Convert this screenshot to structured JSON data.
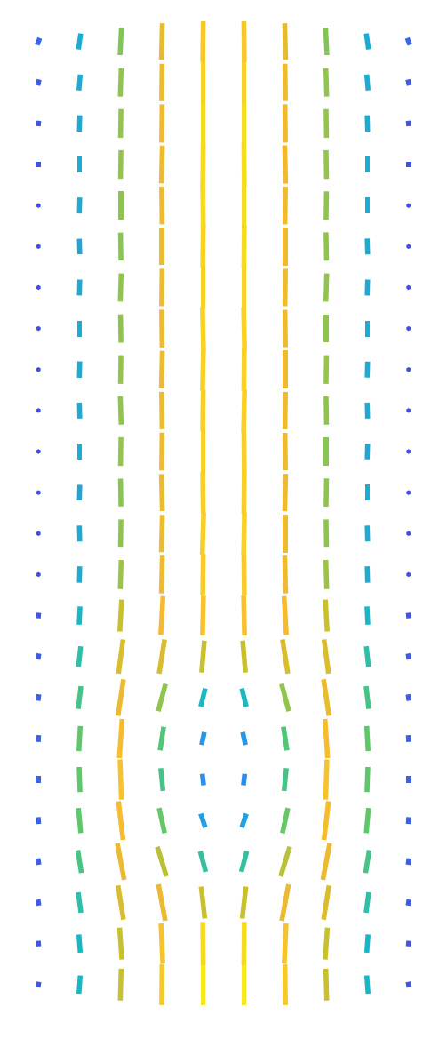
{
  "chart_data": {
    "type": "quiver",
    "tick_labels": false,
    "xlim": [
      0,
      10
    ],
    "ylim": [
      0,
      24
    ],
    "x": [
      0.5,
      1.5,
      2.5,
      3.5,
      4.5,
      5.5,
      6.5,
      7.5,
      8.5,
      9.5
    ],
    "y": [
      0.5,
      1.5,
      2.5,
      3.5,
      4.5,
      5.5,
      6.5,
      7.5,
      8.5,
      9.5,
      10.5,
      11.5,
      12.5,
      13.5,
      14.5,
      15.5,
      16.5,
      17.5,
      18.5,
      19.5,
      20.5,
      21.5,
      22.5,
      23.5
    ],
    "u": [
      [
        0.02,
        0.03,
        0.02,
        0.01,
        0,
        0,
        -0.01,
        -0.02,
        -0.03,
        -0.02
      ],
      [
        -0.01,
        -0.03,
        -0.05,
        -0.04,
        -0.01,
        0.01,
        0.04,
        0.05,
        0.03,
        0.01
      ],
      [
        -0.02,
        -0.06,
        -0.12,
        -0.15,
        -0.08,
        0.08,
        0.15,
        0.12,
        0.06,
        0.02
      ],
      [
        -0.02,
        -0.08,
        -0.15,
        -0.2,
        -0.12,
        0.12,
        0.2,
        0.15,
        0.08,
        0.02
      ],
      [
        -0.01,
        -0.05,
        -0.1,
        -0.12,
        -0.1,
        0.1,
        0.12,
        0.1,
        0.05,
        0.01
      ],
      [
        0,
        -0.02,
        -0.03,
        -0.05,
        -0.03,
        0.03,
        0.05,
        0.03,
        0.02,
        0
      ],
      [
        0.01,
        0.03,
        0.06,
        0.08,
        0.06,
        -0.06,
        -0.08,
        -0.06,
        -0.03,
        -0.01
      ],
      [
        0.02,
        0.06,
        0.12,
        0.16,
        0.1,
        -0.1,
        -0.16,
        -0.12,
        -0.06,
        -0.02
      ],
      [
        0.02,
        0.05,
        0.1,
        0.12,
        0.06,
        -0.06,
        -0.12,
        -0.1,
        -0.05,
        -0.02
      ],
      [
        0.01,
        0.02,
        0.04,
        0.05,
        0.02,
        -0.02,
        -0.05,
        -0.04,
        -0.02,
        -0.01
      ],
      [
        0,
        0.01,
        0.02,
        0.02,
        0.01,
        -0.01,
        -0.02,
        -0.02,
        -0.01,
        0
      ],
      [
        0,
        -0.01,
        0.01,
        0.02,
        0.03,
        0.02,
        0,
        -0.01,
        -0.01,
        0
      ],
      [
        0,
        0.01,
        -0.01,
        -0.02,
        -0.01,
        0.01,
        0.02,
        0.01,
        0,
        0
      ],
      [
        0,
        0,
        0.01,
        0.01,
        0,
        -0.01,
        -0.01,
        0,
        0.01,
        0
      ],
      [
        0,
        -0.01,
        -0.02,
        -0.01,
        0.01,
        0.02,
        0.01,
        -0.01,
        -0.01,
        0
      ],
      [
        0,
        0.01,
        0.01,
        0.02,
        0.02,
        0.01,
        0,
        0.01,
        0.01,
        0
      ],
      [
        0,
        0,
        -0.01,
        -0.01,
        -0.02,
        -0.02,
        -0.01,
        0,
        0,
        0
      ],
      [
        0,
        0.01,
        0.02,
        0.01,
        0,
        0,
        0.01,
        0.02,
        0.01,
        0
      ],
      [
        0,
        -0.01,
        -0.01,
        0,
        0.01,
        0.01,
        0,
        -0.01,
        -0.01,
        0
      ],
      [
        0,
        0.01,
        0,
        -0.01,
        -0.01,
        0,
        0.01,
        0.01,
        0,
        0
      ],
      [
        0,
        0,
        0.01,
        0.02,
        0.01,
        -0.01,
        -0.02,
        -0.01,
        0,
        0
      ],
      [
        0.01,
        0.01,
        0.01,
        0.01,
        0,
        0,
        -0.01,
        -0.01,
        -0.01,
        -0.01
      ],
      [
        0.03,
        0.03,
        0.02,
        0.01,
        0,
        0,
        -0.01,
        -0.02,
        -0.03,
        -0.03
      ],
      [
        0.06,
        0.05,
        0.03,
        0.02,
        0.01,
        -0.01,
        -0.02,
        -0.03,
        -0.05,
        -0.06
      ]
    ],
    "v": [
      [
        0.12,
        0.4,
        0.7,
        0.9,
        1.0,
        1.0,
        0.9,
        0.7,
        0.4,
        0.12
      ],
      [
        0.12,
        0.4,
        0.7,
        0.88,
        0.95,
        0.95,
        0.88,
        0.7,
        0.4,
        0.12
      ],
      [
        0.13,
        0.45,
        0.75,
        0.8,
        0.7,
        0.7,
        0.8,
        0.75,
        0.45,
        0.13
      ],
      [
        0.14,
        0.5,
        0.8,
        0.65,
        0.45,
        0.45,
        0.65,
        0.8,
        0.5,
        0.14
      ],
      [
        0.15,
        0.55,
        0.85,
        0.55,
        0.3,
        0.3,
        0.55,
        0.85,
        0.55,
        0.15
      ],
      [
        0.15,
        0.55,
        0.88,
        0.5,
        0.25,
        0.25,
        0.5,
        0.88,
        0.55,
        0.15
      ],
      [
        0.15,
        0.55,
        0.86,
        0.52,
        0.28,
        0.28,
        0.52,
        0.86,
        0.55,
        0.15
      ],
      [
        0.14,
        0.5,
        0.8,
        0.6,
        0.4,
        0.4,
        0.6,
        0.8,
        0.5,
        0.14
      ],
      [
        0.13,
        0.45,
        0.75,
        0.75,
        0.7,
        0.7,
        0.75,
        0.75,
        0.45,
        0.13
      ],
      [
        0.12,
        0.4,
        0.7,
        0.85,
        0.88,
        0.88,
        0.85,
        0.7,
        0.4,
        0.12
      ],
      [
        0.1,
        0.36,
        0.64,
        0.83,
        0.91,
        0.91,
        0.83,
        0.64,
        0.36,
        0.1
      ],
      [
        0.1,
        0.35,
        0.62,
        0.82,
        0.92,
        0.93,
        0.83,
        0.62,
        0.35,
        0.1
      ],
      [
        0.1,
        0.34,
        0.61,
        0.81,
        0.92,
        0.92,
        0.82,
        0.62,
        0.35,
        0.1
      ],
      [
        0.1,
        0.35,
        0.63,
        0.83,
        0.93,
        0.92,
        0.82,
        0.61,
        0.34,
        0.1
      ],
      [
        0.1,
        0.35,
        0.62,
        0.82,
        0.92,
        0.92,
        0.82,
        0.62,
        0.35,
        0.1
      ],
      [
        0.1,
        0.36,
        0.63,
        0.82,
        0.93,
        0.93,
        0.83,
        0.63,
        0.35,
        0.1
      ],
      [
        0.1,
        0.35,
        0.62,
        0.83,
        0.94,
        0.93,
        0.82,
        0.62,
        0.35,
        0.1
      ],
      [
        0.1,
        0.35,
        0.62,
        0.82,
        0.94,
        0.94,
        0.82,
        0.62,
        0.35,
        0.1
      ],
      [
        0.1,
        0.34,
        0.61,
        0.82,
        0.94,
        0.95,
        0.83,
        0.62,
        0.35,
        0.1
      ],
      [
        0.1,
        0.35,
        0.62,
        0.83,
        0.95,
        0.95,
        0.83,
        0.62,
        0.35,
        0.1
      ],
      [
        0.11,
        0.35,
        0.63,
        0.83,
        0.95,
        0.96,
        0.84,
        0.63,
        0.36,
        0.11
      ],
      [
        0.12,
        0.36,
        0.63,
        0.84,
        0.96,
        0.96,
        0.84,
        0.63,
        0.36,
        0.12
      ],
      [
        0.13,
        0.35,
        0.62,
        0.82,
        0.93,
        0.93,
        0.82,
        0.62,
        0.35,
        0.13
      ],
      [
        0.15,
        0.35,
        0.6,
        0.8,
        0.9,
        0.9,
        0.8,
        0.6,
        0.35,
        0.15
      ]
    ]
  }
}
